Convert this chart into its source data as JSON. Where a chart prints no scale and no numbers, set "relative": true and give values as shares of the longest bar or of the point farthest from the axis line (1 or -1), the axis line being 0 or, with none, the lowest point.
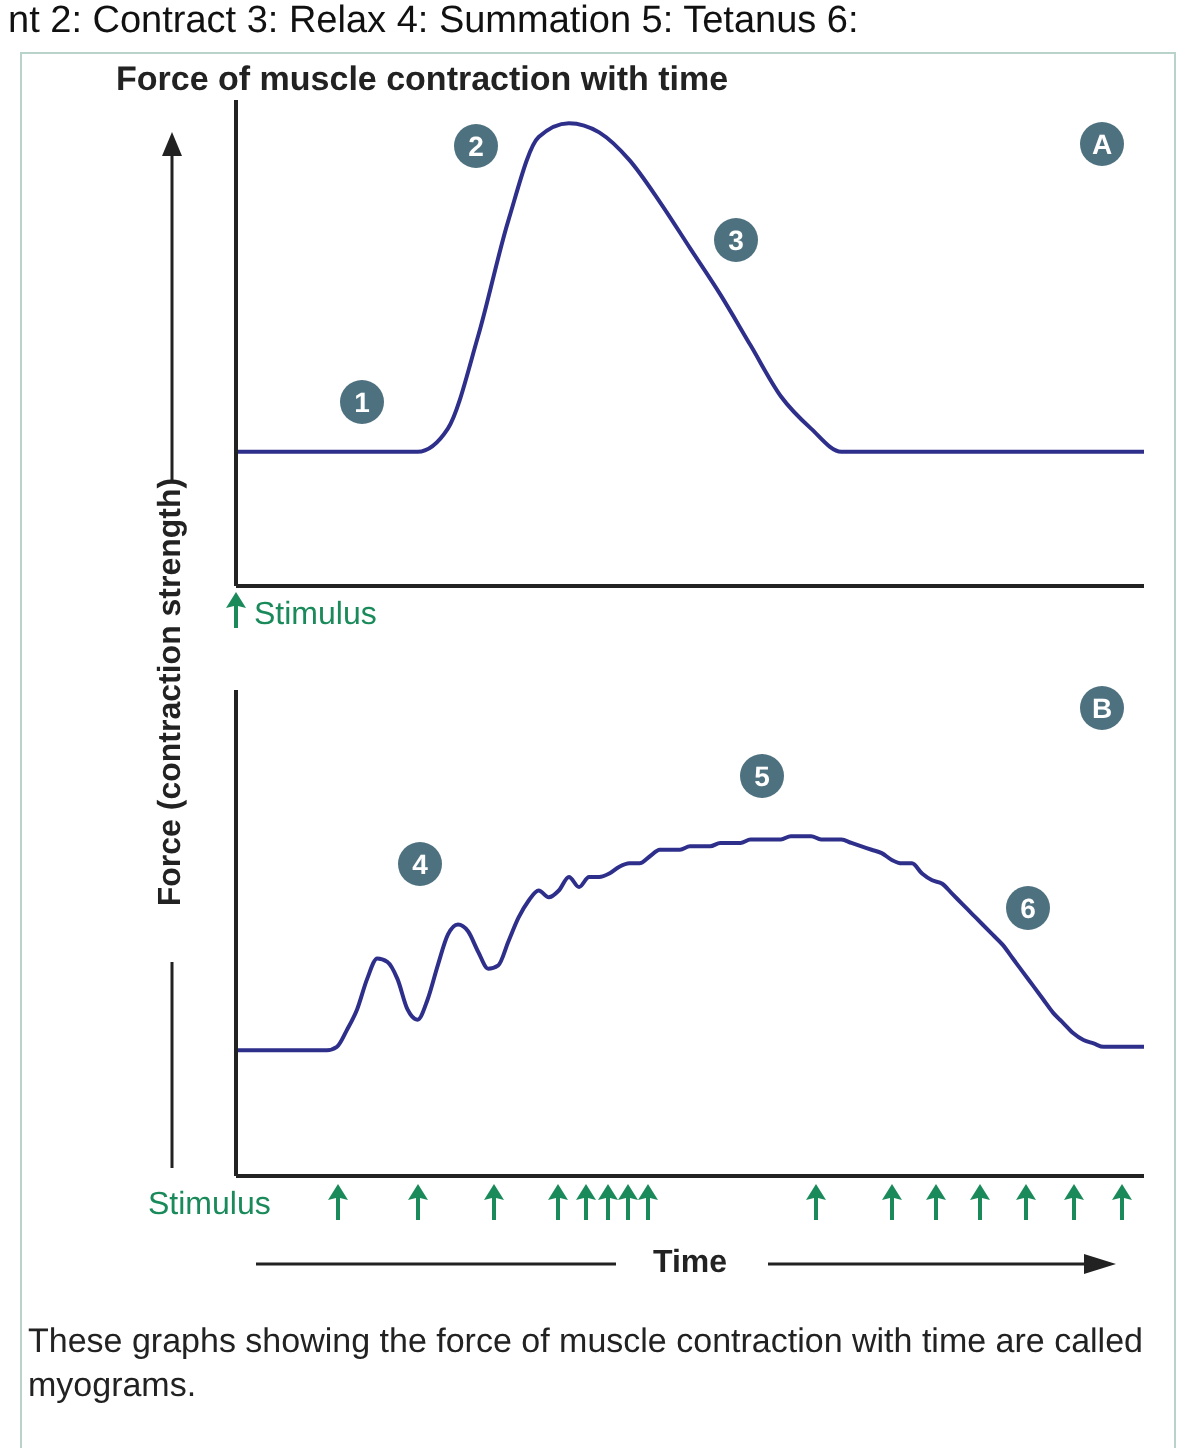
{
  "chart_data": [
    {
      "type": "line",
      "relative": true,
      "title": "Force of muscle contraction with time",
      "ylabel": "Force (contraction strength)",
      "categories": [
        null,
        null,
        null,
        null,
        null,
        null,
        null,
        null,
        null,
        null,
        null,
        null,
        null,
        null,
        null,
        null,
        null,
        null,
        null,
        null,
        null,
        null,
        null,
        null,
        null,
        null,
        null,
        null,
        null,
        null,
        null
      ],
      "series": [
        {
          "color": "#2e2f8a",
          "values": [
            0.29,
            0.29,
            0.29,
            0.29,
            0.29,
            0.29,
            0.29,
            0.34,
            0.54,
            0.79,
            0.97,
            1.0,
            0.98,
            0.92,
            0.83,
            0.73,
            0.63,
            0.52,
            0.41,
            0.34,
            0.29,
            0.29,
            0.29,
            0.29,
            0.29,
            0.29,
            0.29,
            0.29,
            0.29,
            0.29,
            0.29
          ]
        }
      ],
      "annotations": [
        "nt 2: Contract 3: Relax 4: Summation 5: Tetanus 6:",
        "1",
        "2",
        "3",
        "A",
        "Stimulus"
      ]
    },
    {
      "type": "line",
      "relative": true,
      "xlabel": "Time",
      "categories": [
        null,
        null,
        null,
        null,
        null,
        null,
        null,
        null,
        null,
        null,
        null,
        null,
        null,
        null,
        null,
        null,
        null,
        null,
        null,
        null,
        null,
        null,
        null,
        null,
        null,
        null,
        null,
        null,
        null,
        null,
        null,
        null,
        null,
        null,
        null,
        null,
        null,
        null,
        null,
        null,
        null,
        null,
        null,
        null,
        null,
        null,
        null,
        null,
        null,
        null,
        null,
        null,
        null,
        null,
        null,
        null,
        null,
        null,
        null,
        null,
        null,
        null,
        null,
        null,
        null,
        null,
        null,
        null,
        null,
        null,
        null,
        null,
        null,
        null,
        null,
        null,
        null,
        null,
        null,
        null,
        null,
        null,
        null,
        null,
        null,
        null,
        null,
        null,
        null,
        null,
        null
      ],
      "series": [
        {
          "color": "#2e2f8a",
          "values": [
            0.37,
            0.37,
            0.37,
            0.37,
            0.37,
            0.37,
            0.37,
            0.37,
            0.37,
            0.37,
            0.38,
            0.43,
            0.49,
            0.58,
            0.64,
            0.63,
            0.58,
            0.49,
            0.46,
            0.52,
            0.62,
            0.71,
            0.74,
            0.72,
            0.66,
            0.61,
            0.62,
            0.69,
            0.76,
            0.81,
            0.84,
            0.82,
            0.84,
            0.88,
            0.85,
            0.88,
            0.88,
            0.89,
            0.91,
            0.92,
            0.92,
            0.94,
            0.96,
            0.96,
            0.96,
            0.97,
            0.97,
            0.97,
            0.98,
            0.98,
            0.98,
            0.99,
            0.99,
            0.99,
            0.99,
            1.0,
            1.0,
            1.0,
            0.99,
            0.99,
            0.99,
            0.98,
            0.97,
            0.96,
            0.95,
            0.93,
            0.92,
            0.92,
            0.89,
            0.87,
            0.86,
            0.83,
            0.8,
            0.77,
            0.74,
            0.71,
            0.68,
            0.64,
            0.6,
            0.56,
            0.52,
            0.48,
            0.45,
            0.42,
            0.4,
            0.39,
            0.38,
            0.38,
            0.38,
            0.38,
            0.38
          ]
        }
      ],
      "annotations": [
        "4",
        "5",
        "6",
        "B",
        "Stimulus",
        "These graphs showing the force of muscle contraction with time are called myograms."
      ]
    }
  ]
}
